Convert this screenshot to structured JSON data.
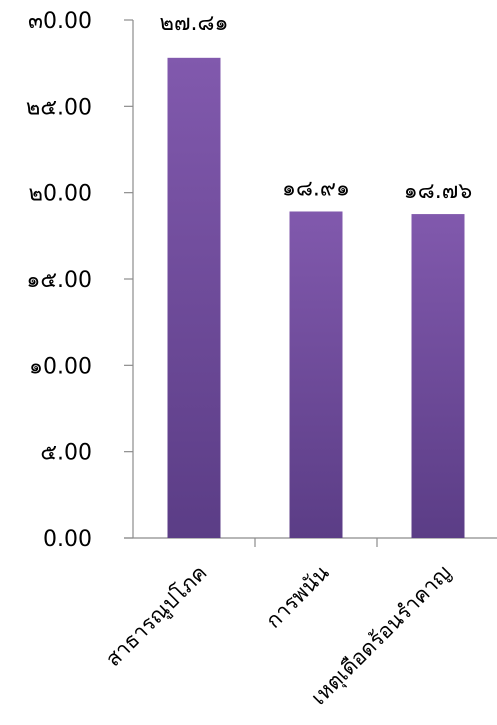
{
  "chart_data": {
    "type": "bar",
    "title": "",
    "xlabel": "",
    "ylabel": "",
    "categories": [
      "สาธารณูปโภค",
      "การพนัน",
      "เหตุเดือดร้อนรำคาญ"
    ],
    "values": [
      27.81,
      18.91,
      18.76
    ],
    "data_labels": [
      "๒๗.๘๑",
      "๑๘.๙๑",
      "๑๘.๗๖"
    ],
    "ylim": [
      0,
      30
    ],
    "yticks": [
      0,
      5,
      10,
      15,
      20,
      25,
      30
    ],
    "ytick_labels": [
      "0.00",
      "๕.00",
      "๑0.00",
      "๑๕.00",
      "๒0.00",
      "๒๕.00",
      "๓0.00"
    ],
    "grid": false,
    "legend": "none",
    "colors": {
      "bar_top": "#8159ad",
      "bar_bottom": "#5b3d86",
      "axis": "#8c8c8c"
    }
  }
}
